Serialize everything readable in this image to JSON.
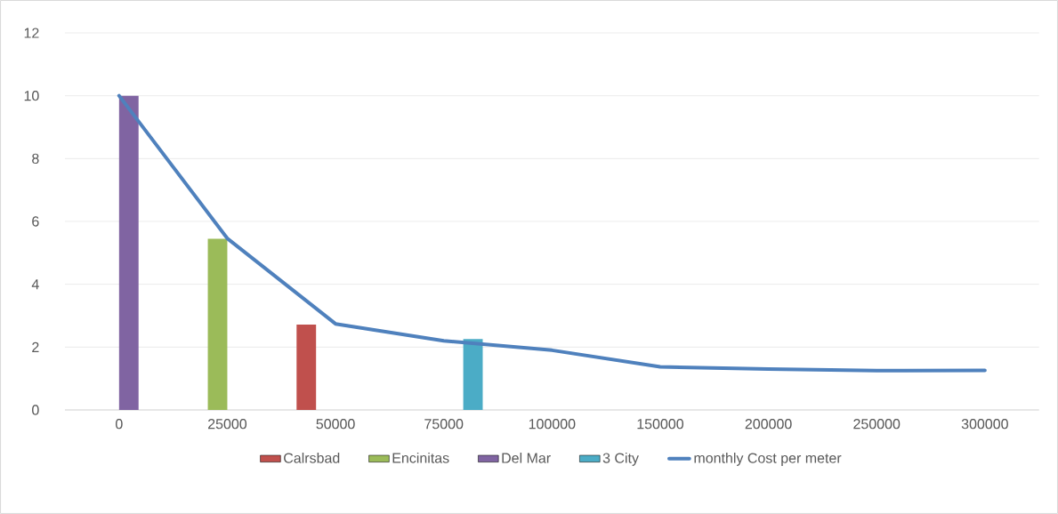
{
  "chart_data": {
    "type": "bar",
    "categories": [
      "0",
      "25000",
      "50000",
      "75000",
      "100000",
      "150000",
      "200000",
      "250000",
      "300000"
    ],
    "series": [
      {
        "name": "Calrsbad",
        "color": "#c0504d",
        "values": [
          null,
          null,
          2.72,
          null,
          null,
          null,
          null,
          null,
          null
        ]
      },
      {
        "name": "Encinitas",
        "color": "#9bbb59",
        "values": [
          null,
          5.45,
          null,
          null,
          null,
          null,
          null,
          null,
          null
        ]
      },
      {
        "name": "Del Mar",
        "color": "#8064a2",
        "values": [
          10,
          null,
          null,
          null,
          null,
          null,
          null,
          null,
          null
        ]
      },
      {
        "name": "3 City",
        "color": "#4bacc6",
        "values": [
          null,
          null,
          null,
          2.26,
          null,
          null,
          null,
          null,
          null
        ]
      },
      {
        "name": "monthly Cost per meter",
        "type": "line",
        "color": "#4f81bd",
        "values": [
          10,
          5.46,
          2.74,
          2.2,
          1.9,
          1.37,
          1.3,
          1.25,
          1.26
        ]
      }
    ],
    "ylim": [
      0,
      12
    ],
    "yticks": [
      0,
      2,
      4,
      6,
      8,
      10,
      12
    ],
    "grid": "y",
    "legend": "bottom",
    "marker": "none"
  }
}
